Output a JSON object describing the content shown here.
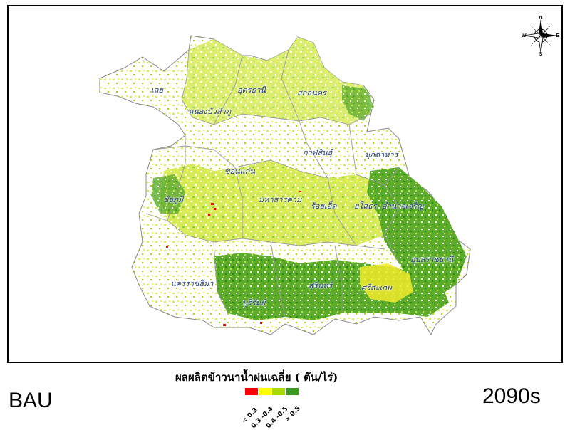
{
  "map": {
    "provinces": [
      {
        "name": "เลย"
      },
      {
        "name": "อุดรธานี"
      },
      {
        "name": "สกลนคร"
      },
      {
        "name": "หนองบัวลำภู"
      },
      {
        "name": "กาฬสินธุ์"
      },
      {
        "name": "มุกดาหาร"
      },
      {
        "name": "ขอนแก่น"
      },
      {
        "name": "ชัยภูมิ"
      },
      {
        "name": "มหาสารคาม"
      },
      {
        "name": "ร้อยเอ็ด"
      },
      {
        "name": "ยโสธร"
      },
      {
        "name": "อำนาจเจริญ"
      },
      {
        "name": "อุบลราชธานี"
      },
      {
        "name": "นครราชสีมา"
      },
      {
        "name": "บุรีรัมย์"
      },
      {
        "name": "สุรินทร์"
      },
      {
        "name": "ศรีสะเกษ"
      }
    ],
    "compass": {
      "n": "N",
      "s": "S",
      "e": "E",
      "w": "W"
    }
  },
  "legend": {
    "title": "ผลผลิตข้าวนาน้ำฝนเฉลี่ย ( ตัน/ไร่)",
    "classes": [
      {
        "label": "< 0.3",
        "color": "#ff0000"
      },
      {
        "label": "0.3 -0.4",
        "color": "#ffff00"
      },
      {
        "label": "0.4 -0.5",
        "color": "#a8d800"
      },
      {
        "label": "> 0.5",
        "color": "#3a9a1a"
      }
    ]
  },
  "scenario_label": "BAU",
  "period_label": "2090s"
}
